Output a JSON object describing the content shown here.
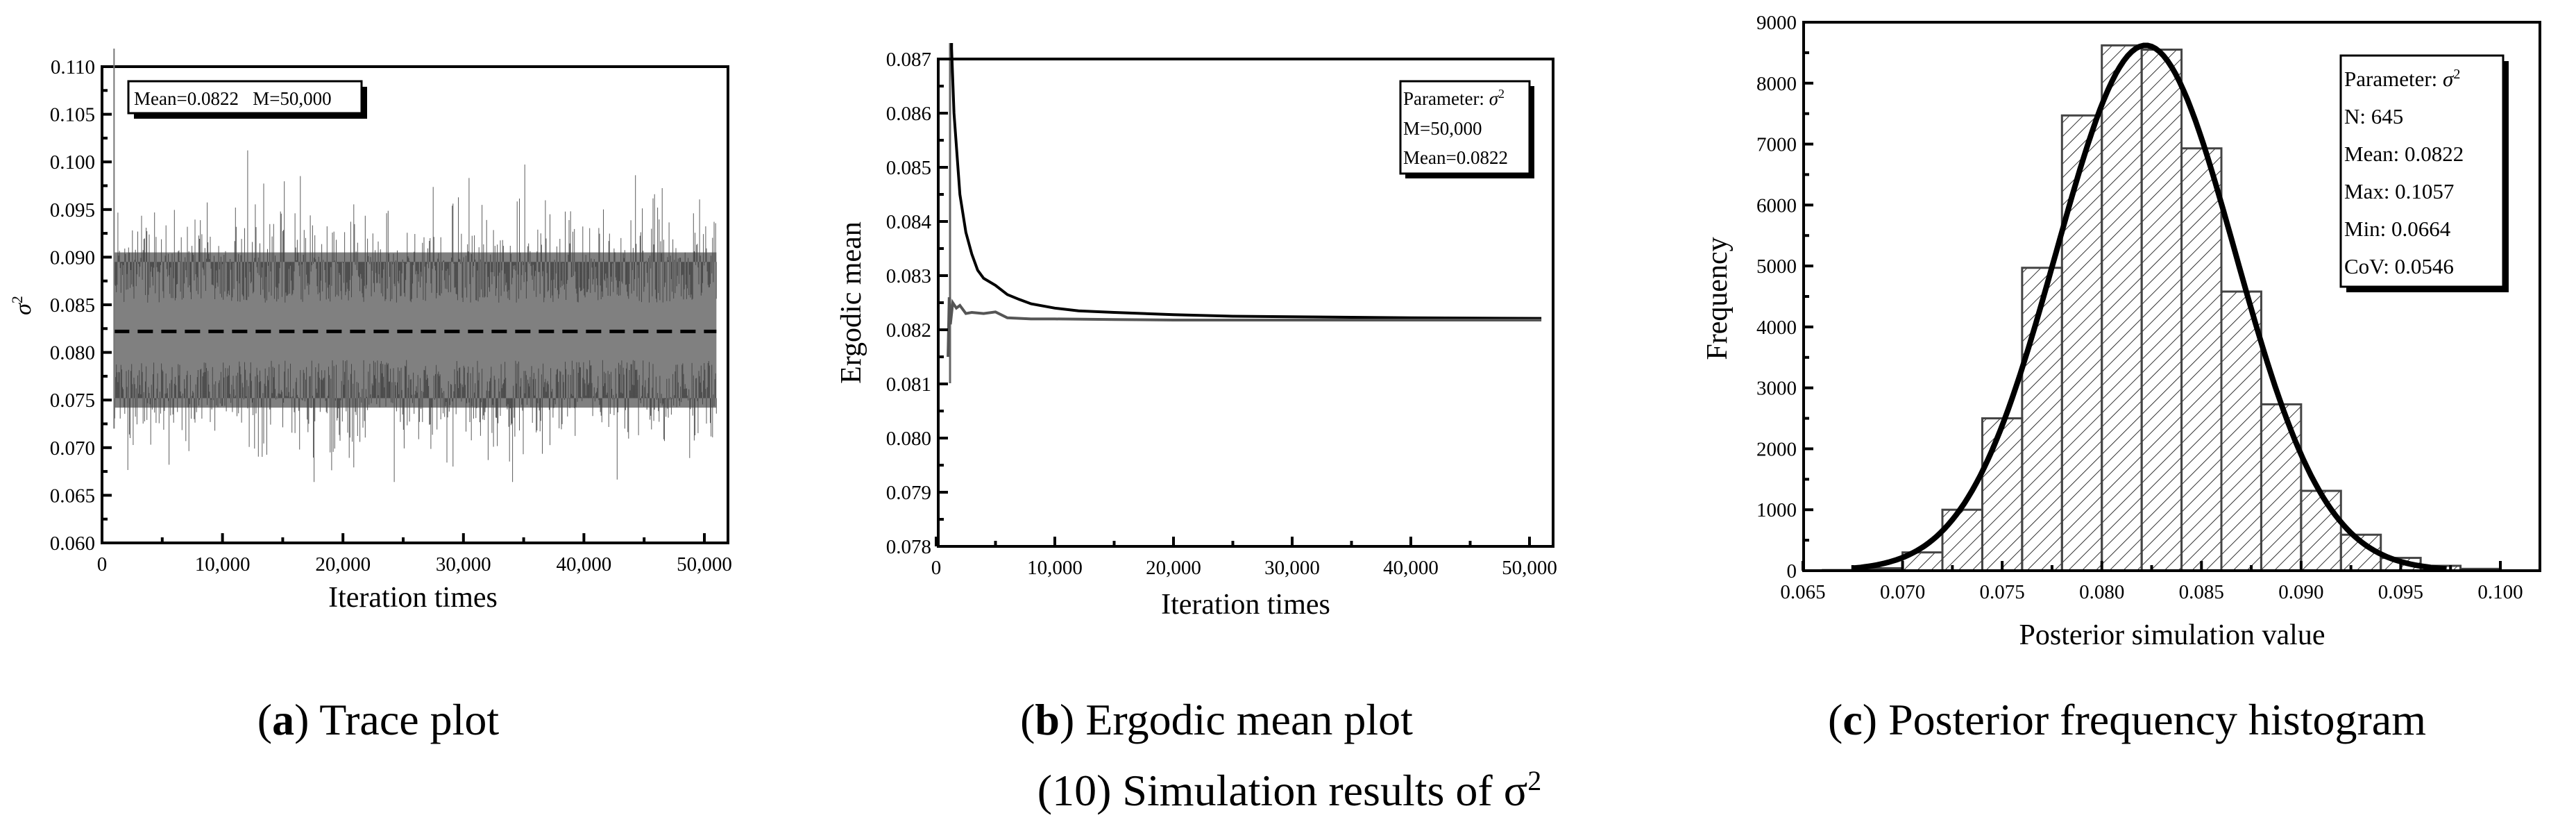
{
  "figure": {
    "caption": "(10) Simulation results of σ²",
    "caption_number": "(10)",
    "caption_text": "Simulation results of σ",
    "caption_sup": "2"
  },
  "panels": [
    {
      "id": "a",
      "label": "a",
      "caption": "Trace plot"
    },
    {
      "id": "b",
      "label": "b",
      "caption": "Ergodic mean plot"
    },
    {
      "id": "c",
      "label": "c",
      "caption": "Posterior frequency histogram"
    }
  ],
  "colors": {
    "trace_fill": "#808080",
    "trace_spike": "#404040",
    "mean_line": "#000000",
    "ergodic_upper": "#000000",
    "ergodic_lower": "#555555",
    "hist_edge": "#444444",
    "hist_hatch": "#333333",
    "curve": "#000000"
  },
  "chart_data": [
    {
      "panel": "a",
      "type": "line",
      "title": "Trace plot",
      "xlabel": "Iteration times",
      "ylabel": "σ²",
      "xlim": [
        0,
        51000
      ],
      "ylim": [
        0.06,
        0.11
      ],
      "xticks": [
        0,
        10000,
        20000,
        30000,
        40000,
        50000
      ],
      "xtick_labels": [
        "0",
        "10,000",
        "20,000",
        "30,000",
        "40,000",
        "50,000"
      ],
      "yticks": [
        0.06,
        0.065,
        0.07,
        0.075,
        0.08,
        0.085,
        0.09,
        0.095,
        0.1,
        0.105,
        0.11
      ],
      "ytick_labels": [
        "0.060",
        "0.065",
        "0.070",
        "0.075",
        "0.080",
        "0.085",
        "0.090",
        "0.095",
        "0.100",
        "0.105",
        "0.110"
      ],
      "grid": false,
      "annotation": "Mean=0.0822   M=50,000",
      "series": [
        {
          "name": "trace",
          "description": "MCMC samples of σ² oscillating around mean",
          "x_range": [
            1000,
            51000
          ],
          "dense_band": [
            0.0735,
            0.0935
          ],
          "extremes": [
            0.0664,
            0.1057
          ]
        },
        {
          "name": "mean",
          "style": "dashed",
          "value": 0.0822
        }
      ]
    },
    {
      "panel": "b",
      "type": "line",
      "title": "Ergodic mean plot",
      "xlabel": "Iteration times",
      "ylabel": "Ergodic mean",
      "xlim": [
        0,
        51500
      ],
      "ylim": [
        0.078,
        0.087
      ],
      "xticks": [
        0,
        10000,
        20000,
        30000,
        40000,
        50000
      ],
      "xtick_labels": [
        "0",
        "10,000",
        "20,000",
        "30,000",
        "40,000",
        "50,000"
      ],
      "yticks": [
        0.078,
        0.079,
        0.08,
        0.081,
        0.082,
        0.083,
        0.084,
        0.085,
        0.086,
        0.087
      ],
      "ytick_labels": [
        "0.078",
        "0.079",
        "0.080",
        "0.081",
        "0.082",
        "0.083",
        "0.084",
        "0.085",
        "0.086",
        "0.087"
      ],
      "grid": false,
      "legend": [
        "Parameter: σ²",
        "M=50,000",
        "Mean=0.0822"
      ],
      "legend_position": "top-right",
      "series": [
        {
          "name": "upper",
          "x": [
            1300,
            1500,
            2000,
            2500,
            3000,
            3500,
            4000,
            5000,
            6000,
            7000,
            8000,
            10000,
            12000,
            15000,
            20000,
            25000,
            30000,
            40000,
            51000
          ],
          "y": [
            0.0872,
            0.086,
            0.0845,
            0.0838,
            0.0834,
            0.0831,
            0.08295,
            0.08282,
            0.08265,
            0.08256,
            0.08248,
            0.0824,
            0.08235,
            0.08232,
            0.08228,
            0.08225,
            0.08224,
            0.08222,
            0.08221
          ]
        },
        {
          "name": "lower",
          "x": [
            1000,
            1100,
            1200,
            1400,
            1700,
            2000,
            2500,
            3000,
            4000,
            5000,
            6000,
            8000,
            10000,
            15000,
            20000,
            30000,
            40000,
            51000
          ],
          "y": [
            0.0815,
            0.0826,
            0.0821,
            0.0825,
            0.0824,
            0.08245,
            0.0823,
            0.08232,
            0.0823,
            0.08233,
            0.08222,
            0.0822,
            0.0822,
            0.08219,
            0.08218,
            0.08218,
            0.08218,
            0.08218
          ]
        }
      ]
    },
    {
      "panel": "c",
      "type": "bar",
      "title": "Posterior frequency histogram",
      "xlabel": "Posterior simulation value",
      "ylabel": "Frequency",
      "xlim": [
        0.065,
        0.1025
      ],
      "ylim": [
        0,
        9000
      ],
      "xticks": [
        0.065,
        0.07,
        0.075,
        0.08,
        0.085,
        0.09,
        0.095,
        0.1
      ],
      "xtick_labels": [
        "0.065",
        "0.070",
        "0.075",
        "0.080",
        "0.085",
        "0.090",
        "0.095",
        "0.100"
      ],
      "yticks": [
        0,
        1000,
        2000,
        3000,
        4000,
        5000,
        6000,
        7000,
        8000,
        9000
      ],
      "ytick_labels": [
        "0",
        "1000",
        "2000",
        "3000",
        "4000",
        "5000",
        "6000",
        "7000",
        "8000",
        "9000"
      ],
      "grid": false,
      "bin_width": 0.002,
      "categories": [
        "0.066-0.068",
        "0.068-0.070",
        "0.070-0.072",
        "0.072-0.074",
        "0.074-0.076",
        "0.076-0.078",
        "0.078-0.080",
        "0.080-0.082",
        "0.082-0.084",
        "0.084-0.086",
        "0.086-0.088",
        "0.088-0.090",
        "0.090-0.092",
        "0.092-0.094",
        "0.094-0.096",
        "0.096-0.098",
        "0.098-0.100"
      ],
      "bin_starts": [
        0.066,
        0.068,
        0.07,
        0.072,
        0.074,
        0.076,
        0.078,
        0.08,
        0.082,
        0.084,
        0.086,
        0.088,
        0.09,
        0.092,
        0.094,
        0.096,
        0.098
      ],
      "values": [
        10,
        40,
        300,
        1000,
        2500,
        4970,
        7470,
        8620,
        8550,
        6930,
        4580,
        2730,
        1310,
        590,
        210,
        80,
        30
      ],
      "fit_curve": {
        "type": "normal",
        "mean": 0.0822,
        "std": 0.00449,
        "peak": 8620,
        "x_range": [
          0.0675,
          0.0975
        ]
      },
      "legend": [
        "Parameter: σ²",
        "N: 645",
        "Mean: 0.0822",
        "Max: 0.1057",
        "Min: 0.0664",
        "CoV: 0.0546"
      ],
      "legend_position": "top-right"
    }
  ]
}
